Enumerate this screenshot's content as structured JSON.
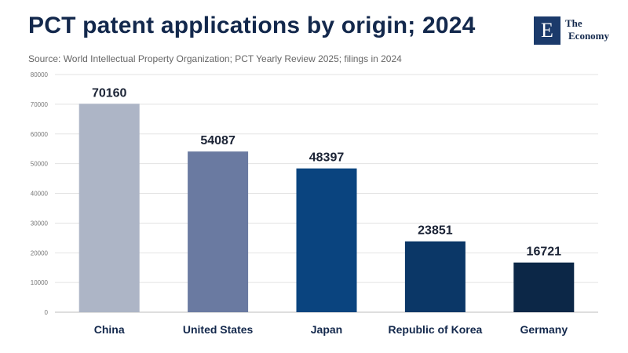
{
  "header": {
    "title": "PCT patent applications by origin; 2024",
    "subtitle": "Source: World Intellectual Property Organization; PCT Yearly Review 2025; filings in 2024"
  },
  "logo": {
    "mark": "E",
    "line1": "The",
    "line2": "Economy"
  },
  "chart_data": {
    "type": "bar",
    "title": "PCT patent applications by origin; 2024",
    "categories": [
      "China",
      "United States",
      "Japan",
      "Republic of Korea",
      "Germany"
    ],
    "values": [
      70160,
      54087,
      48397,
      23851,
      16721
    ],
    "colors": [
      "#adb5c6",
      "#6a7aa1",
      "#0a447f",
      "#0b3767",
      "#0c2747"
    ],
    "ylim": [
      0,
      80000
    ],
    "yticks": [
      0,
      10000,
      20000,
      30000,
      40000,
      50000,
      60000,
      70000,
      80000
    ],
    "xlabel": "",
    "ylabel": "",
    "grid": true,
    "legend": "none"
  }
}
